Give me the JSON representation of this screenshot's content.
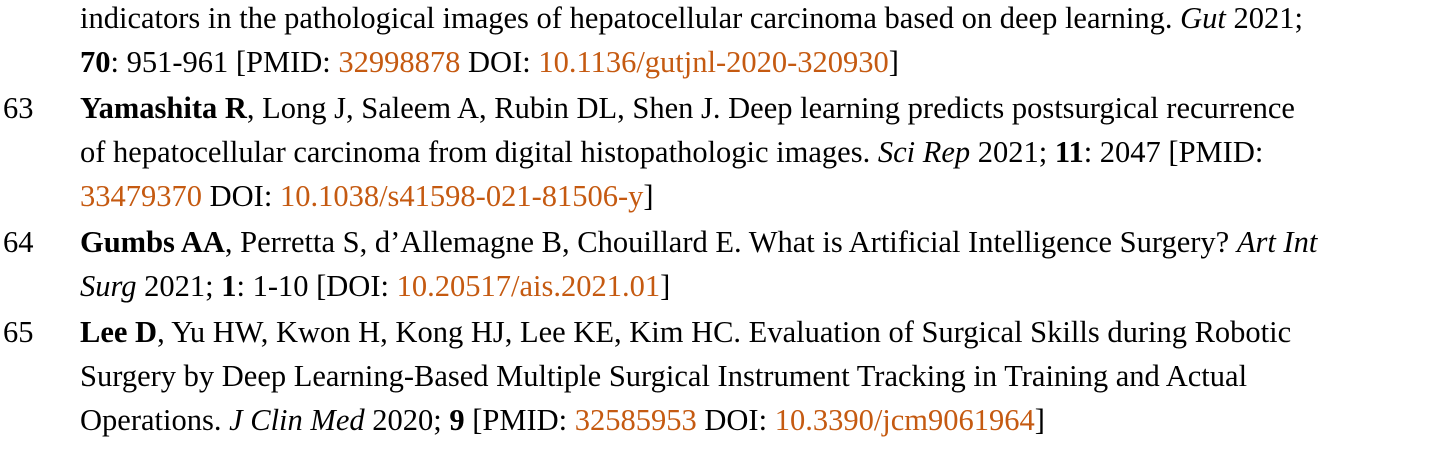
{
  "ref62": {
    "line1_text": "indicators in the pathological images of hepatocellular carcinoma based on deep learning. ",
    "line1_journal": "Gut",
    "line1_year": " 2021;",
    "line2_volume": "70",
    "line2_pages": ": 951-961 [PMID: ",
    "pmid": "32998878",
    "doi_label": " DOI: ",
    "doi": "10.1136/gutjnl-2020-320930",
    "close": "]"
  },
  "ref63": {
    "number": "63",
    "author": "Yamashita R",
    "line1_rest": ", Long J, Saleem A, Rubin DL, Shen J. Deep learning predicts postsurgical recurrence",
    "line2_text": "of hepatocellular carcinoma from digital histopathologic images. ",
    "journal": "Sci Rep",
    "year": " 2021; ",
    "volume": "11",
    "pages": ": 2047 [PMID:",
    "pmid": "33479370",
    "doi_label": " DOI: ",
    "doi": "10.1038/s41598-021-81506-y",
    "close": "]"
  },
  "ref64": {
    "number": "64",
    "author": "Gumbs AA",
    "line1_rest": ", Perretta S, d’Allemagne B, Chouillard E. What is Artificial Intelligence Surgery? ",
    "journal_part1": "Art Int",
    "journal_part2": "Surg",
    "year": " 2021; ",
    "volume": "1",
    "pages": ": 1-10 [DOI: ",
    "doi": "10.20517/ais.2021.01",
    "close": "]"
  },
  "ref65": {
    "number": "65",
    "author": "Lee D",
    "line1_rest": ", Yu HW, Kwon H, Kong HJ, Lee KE, Kim HC. Evaluation of Surgical Skills during Robotic",
    "line2_text": "Surgery by Deep Learning-Based Multiple Surgical Instrument Tracking in Training and Actual",
    "line3_text": "Operations. ",
    "journal": "J Clin Med",
    "year": " 2020; ",
    "volume": "9",
    "pages": " [PMID: ",
    "pmid": "32585953",
    "doi_label": " DOI: ",
    "doi": "10.3390/jcm9061964",
    "close": "]"
  },
  "colors": {
    "link": "#c55a11",
    "text": "#000000"
  }
}
